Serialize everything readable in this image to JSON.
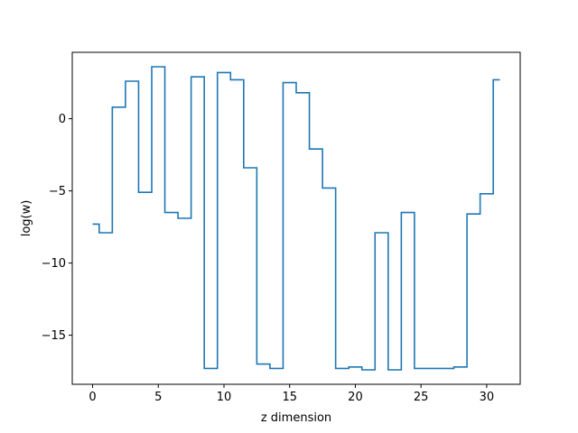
{
  "chart_data": {
    "type": "line",
    "drawstyle": "steps-mid",
    "title": "",
    "xlabel": "z dimension",
    "ylabel": "log(w)",
    "xlim": [
      -1.55,
      32.55
    ],
    "ylim": [
      -18.4,
      4.6
    ],
    "xticks": [
      0,
      5,
      10,
      15,
      20,
      25,
      30
    ],
    "yticks": [
      -15,
      -10,
      -5,
      0
    ],
    "ytick_labels": [
      "−15",
      "−10",
      "−5",
      "0"
    ],
    "grid": false,
    "legend": "none",
    "series": [
      {
        "color": "#1f77b4",
        "x": [
          0,
          1,
          2,
          3,
          4,
          5,
          6,
          7,
          8,
          9,
          10,
          11,
          12,
          13,
          14,
          15,
          16,
          17,
          18,
          19,
          20,
          21,
          22,
          23,
          24,
          25,
          26,
          27,
          28,
          29,
          30,
          31
        ],
        "y": [
          -7.3,
          -7.9,
          0.8,
          2.6,
          -5.1,
          3.6,
          -6.5,
          -6.9,
          2.9,
          -17.3,
          3.2,
          2.7,
          -3.4,
          -17.0,
          -17.3,
          2.5,
          1.8,
          -2.1,
          -4.8,
          -17.3,
          -17.2,
          -17.4,
          -7.9,
          -17.4,
          -6.5,
          -17.3,
          -17.3,
          -17.3,
          -17.2,
          -6.6,
          -5.2,
          2.7
        ]
      }
    ]
  }
}
